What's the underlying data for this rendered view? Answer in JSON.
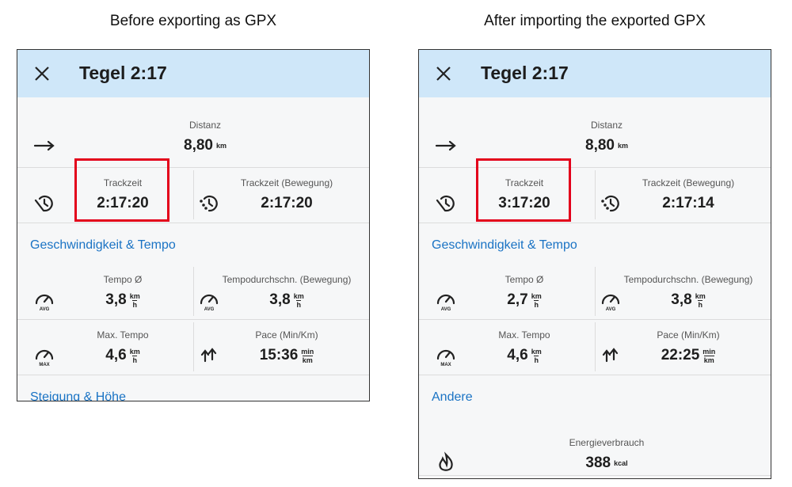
{
  "captions": [
    "Before exporting as GPX",
    "After importing the exported GPX"
  ],
  "panels": [
    {
      "title": "Tegel 2:17",
      "items": [
        {
          "cells": [
            {
              "label": "Distanz",
              "value": "8,80",
              "unit": [
                "km"
              ]
            }
          ]
        },
        {
          "cells": [
            {
              "label": "Trackzeit",
              "value": "2:17:20",
              "highlight": true
            },
            {
              "label": "Trackzeit (Bewegung)",
              "value": "2:17:20"
            }
          ]
        },
        {
          "section": "Geschwindigkeit & Tempo"
        },
        {
          "cells": [
            {
              "label": "Tempo Ø",
              "value": "3,8",
              "unit": [
                "km",
                "h"
              ],
              "badge": "AVG"
            },
            {
              "label": "Tempodurchschn. (Bewegung)",
              "value": "3,8",
              "unit": [
                "km",
                "h"
              ],
              "badge": "AVG"
            }
          ]
        },
        {
          "cells": [
            {
              "label": "Max. Tempo",
              "value": "4,6",
              "unit": [
                "km",
                "h"
              ],
              "badge": "MAX"
            },
            {
              "label": "Pace (Min/Km)",
              "value": "15:36",
              "unit": [
                "min",
                "km"
              ]
            }
          ]
        },
        {
          "section": "Steigung & Höhe"
        }
      ]
    },
    {
      "title": "Tegel 2:17",
      "items": [
        {
          "cells": [
            {
              "label": "Distanz",
              "value": "8,80",
              "unit": [
                "km"
              ]
            }
          ]
        },
        {
          "cells": [
            {
              "label": "Trackzeit",
              "value": "3:17:20",
              "highlight": true
            },
            {
              "label": "Trackzeit (Bewegung)",
              "value": "2:17:14"
            }
          ]
        },
        {
          "section": "Geschwindigkeit & Tempo"
        },
        {
          "cells": [
            {
              "label": "Tempo Ø",
              "value": "2,7",
              "unit": [
                "km",
                "h"
              ],
              "badge": "AVG"
            },
            {
              "label": "Tempodurchschn. (Bewegung)",
              "value": "3,8",
              "unit": [
                "km",
                "h"
              ],
              "badge": "AVG"
            }
          ]
        },
        {
          "cells": [
            {
              "label": "Max. Tempo",
              "value": "4,6",
              "unit": [
                "km",
                "h"
              ],
              "badge": "MAX"
            },
            {
              "label": "Pace (Min/Km)",
              "value": "22:25",
              "unit": [
                "min",
                "km"
              ]
            }
          ]
        },
        {
          "section": "Andere"
        },
        {
          "cells": [
            {
              "label": "Energieverbrauch",
              "value": "388",
              "unit": [
                "kcal"
              ]
            }
          ]
        }
      ]
    }
  ]
}
